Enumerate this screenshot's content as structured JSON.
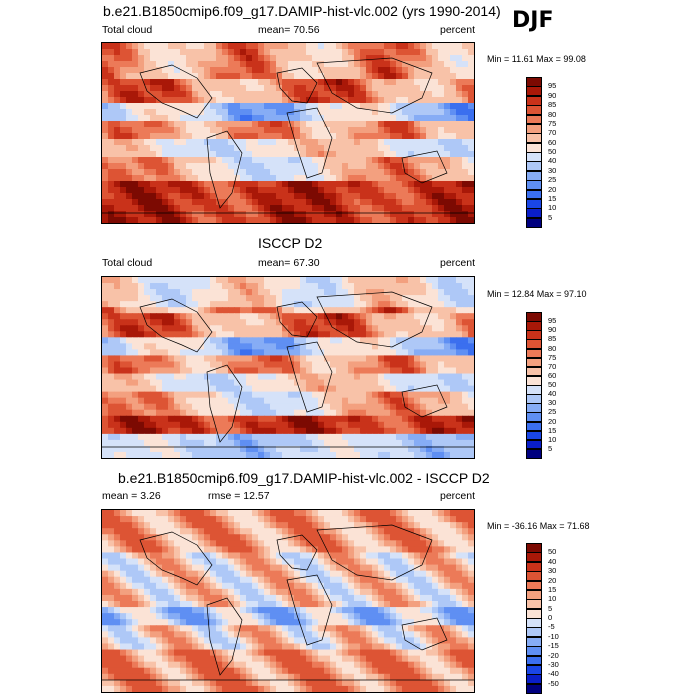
{
  "season": "DJF",
  "panels": [
    {
      "title": "b.e21.B1850cmip6.f09_g17.DAMIP-hist-vlc.002 (yrs 1990-2014)",
      "left": "Total cloud",
      "center": "mean=  70.56",
      "right": "percent",
      "minmax": "Min =  11.61 Max =  99.08",
      "colorbar": [
        "95",
        "90",
        "85",
        "80",
        "75",
        "70",
        "60",
        "50",
        "40",
        "30",
        "25",
        "20",
        "15",
        "10",
        "5"
      ]
    },
    {
      "title": "ISCCP D2",
      "left": "Total cloud",
      "center": "mean=  67.30",
      "right": "percent",
      "minmax": "Min =  12.84 Max =  97.10",
      "colorbar": [
        "95",
        "90",
        "85",
        "80",
        "75",
        "70",
        "60",
        "50",
        "40",
        "30",
        "25",
        "20",
        "15",
        "10",
        "5"
      ]
    },
    {
      "title": "b.e21.B1850cmip6.f09_g17.DAMIP-hist-vlc.002 - ISCCP D2",
      "left": "mean =   3.26",
      "center": "rmse =  12.57",
      "right": "percent",
      "minmax": "Min = -36.16 Max =  71.68",
      "colorbar": [
        "50",
        "40",
        "30",
        "20",
        "15",
        "10",
        "5",
        "0",
        "-5",
        "-10",
        "-15",
        "-20",
        "-30",
        "-40",
        "-50"
      ]
    }
  ],
  "chart_data": [
    {
      "type": "heatmap",
      "title": "b.e21.B1850cmip6.f09_g17.DAMIP-hist-vlc.002 (yrs 1990-2014)",
      "variable": "Total cloud",
      "units": "percent",
      "mean": 70.56,
      "min": 11.61,
      "max": 99.08,
      "levels": [
        5,
        10,
        15,
        20,
        25,
        30,
        40,
        50,
        60,
        70,
        75,
        80,
        85,
        90,
        95
      ],
      "colors": [
        "#00007f",
        "#0a1ec8",
        "#1a46e6",
        "#3b6fef",
        "#5f8ff3",
        "#86acf5",
        "#aec8f7",
        "#d5e2f9",
        "#fbe3d6",
        "#f8c2a8",
        "#f3a07f",
        "#ec7a58",
        "#dd5434",
        "#c9321a",
        "#a91808",
        "#7c0a02"
      ]
    },
    {
      "type": "heatmap",
      "title": "ISCCP D2",
      "variable": "Total cloud",
      "units": "percent",
      "mean": 67.3,
      "min": 12.84,
      "max": 97.1,
      "levels": [
        5,
        10,
        15,
        20,
        25,
        30,
        40,
        50,
        60,
        70,
        75,
        80,
        85,
        90,
        95
      ],
      "colors": [
        "#00007f",
        "#0a1ec8",
        "#1a46e6",
        "#3b6fef",
        "#5f8ff3",
        "#86acf5",
        "#aec8f7",
        "#d5e2f9",
        "#fbe3d6",
        "#f8c2a8",
        "#f3a07f",
        "#ec7a58",
        "#dd5434",
        "#c9321a",
        "#a91808",
        "#7c0a02"
      ]
    },
    {
      "type": "heatmap",
      "title": "b.e21.B1850cmip6.f09_g17.DAMIP-hist-vlc.002 - ISCCP D2",
      "units": "percent",
      "mean": 3.26,
      "rmse": 12.57,
      "min": -36.16,
      "max": 71.68,
      "levels": [
        -50,
        -40,
        -30,
        -20,
        -15,
        -10,
        -5,
        0,
        5,
        10,
        15,
        20,
        30,
        40,
        50
      ],
      "colors": [
        "#00007f",
        "#0a1ec8",
        "#1a46e6",
        "#3b6fef",
        "#5f8ff3",
        "#86acf5",
        "#aec8f7",
        "#d5e2f9",
        "#fbe3d6",
        "#f8c2a8",
        "#f3a07f",
        "#ec7a58",
        "#dd5434",
        "#c9321a",
        "#a91808",
        "#7c0a02"
      ]
    }
  ]
}
